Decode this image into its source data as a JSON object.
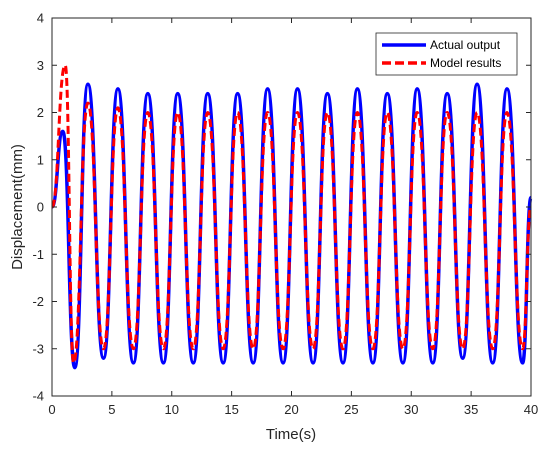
{
  "chart_data": {
    "type": "line",
    "xlabel": "Time(s)",
    "ylabel": "Displacement(mm)",
    "xlim": [
      0,
      40
    ],
    "ylim": [
      -4,
      4
    ],
    "xticks": [
      0,
      5,
      10,
      15,
      20,
      25,
      30,
      35,
      40
    ],
    "yticks": [
      -4,
      -3,
      -2,
      -1,
      0,
      1,
      2,
      3,
      4
    ],
    "grid": false,
    "legend_position": "top-right",
    "series": [
      {
        "name": "Actual output",
        "style": "solid",
        "color": "#0000ff",
        "x": [
          0,
          0.9,
          1.9,
          3.0,
          4.3,
          5.5,
          6.8,
          8.0,
          9.3,
          10.5,
          11.8,
          13.0,
          14.3,
          15.5,
          16.8,
          18.0,
          19.3,
          20.5,
          21.8,
          23.0,
          24.3,
          25.5,
          26.8,
          28.0,
          29.3,
          30.5,
          31.8,
          33.0,
          34.3,
          35.5,
          36.8,
          38.0,
          39.3,
          40
        ],
        "y": [
          0,
          1.6,
          -3.4,
          2.6,
          -3.2,
          2.5,
          -3.3,
          2.4,
          -3.3,
          2.4,
          -3.3,
          2.4,
          -3.3,
          2.4,
          -3.3,
          2.5,
          -3.3,
          2.5,
          -3.3,
          2.4,
          -3.3,
          2.5,
          -3.3,
          2.4,
          -3.3,
          2.5,
          -3.3,
          2.4,
          -3.2,
          2.6,
          -3.3,
          2.5,
          -3.3,
          0.2
        ]
      },
      {
        "name": "Model results",
        "style": "dashed",
        "color": "#ff0000",
        "x": [
          0,
          1.1,
          1.8,
          3.0,
          4.3,
          5.5,
          6.8,
          8.0,
          9.3,
          10.5,
          11.8,
          13.0,
          14.3,
          15.5,
          16.8,
          18.0,
          19.3,
          20.5,
          21.8,
          23.0,
          24.3,
          25.5,
          26.8,
          28.0,
          29.3,
          30.5,
          31.8,
          33.0,
          34.3,
          35.5,
          36.8,
          38.0,
          39.3,
          40
        ],
        "y": [
          0,
          3.0,
          -3.3,
          2.2,
          -3.0,
          2.1,
          -3.0,
          2.0,
          -3.0,
          2.0,
          -3.0,
          2.0,
          -3.0,
          2.0,
          -3.0,
          2.0,
          -3.0,
          2.0,
          -3.0,
          2.0,
          -3.0,
          2.0,
          -3.0,
          2.0,
          -3.0,
          2.0,
          -3.0,
          2.0,
          -3.0,
          2.0,
          -3.0,
          2.0,
          -3.0,
          0.0
        ]
      }
    ]
  }
}
